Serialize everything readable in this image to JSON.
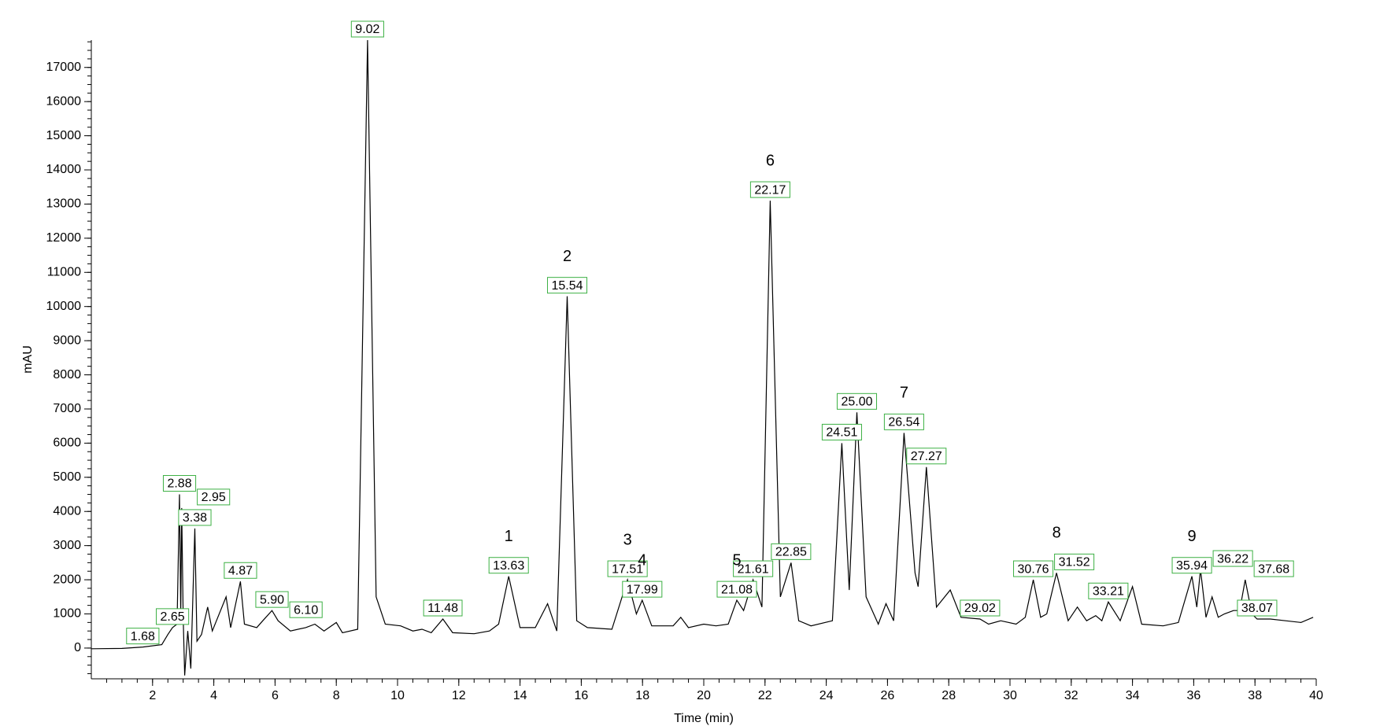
{
  "chart_data": {
    "type": "line",
    "xlabel": "Time (min)",
    "ylabel": "mAU",
    "color": "#000000",
    "xlim": [
      0,
      40
    ],
    "ylim": [
      -900,
      17800
    ],
    "xticks": [
      2,
      4,
      6,
      8,
      10,
      12,
      14,
      16,
      18,
      20,
      22,
      24,
      26,
      28,
      30,
      32,
      34,
      36,
      38,
      40
    ],
    "yticks": [
      0,
      1000,
      2000,
      3000,
      4000,
      5000,
      6000,
      7000,
      8000,
      9000,
      10000,
      11000,
      12000,
      13000,
      14000,
      15000,
      16000,
      17000
    ],
    "xminor": 0.5,
    "yminor": 250,
    "x": [
      0,
      1,
      1.68,
      2.3,
      2.5,
      2.65,
      2.8,
      2.88,
      2.92,
      2.95,
      3.0,
      3.05,
      3.15,
      3.25,
      3.38,
      3.45,
      3.6,
      3.8,
      3.95,
      4.4,
      4.55,
      4.87,
      5.0,
      5.4,
      5.6,
      5.9,
      6.1,
      6.5,
      7.0,
      7.3,
      7.6,
      8.0,
      8.2,
      8.7,
      9.02,
      9.3,
      9.6,
      10.1,
      10.5,
      10.8,
      11.1,
      11.48,
      11.8,
      12.5,
      13.0,
      13.3,
      13.63,
      14.0,
      14.5,
      14.9,
      15.2,
      15.54,
      15.85,
      16.2,
      17.0,
      17.51,
      17.8,
      17.99,
      18.3,
      19.0,
      19.25,
      19.5,
      20.0,
      20.4,
      20.8,
      21.08,
      21.3,
      21.61,
      21.9,
      22.17,
      22.5,
      22.85,
      23.1,
      23.5,
      24.2,
      24.51,
      24.75,
      25.0,
      25.3,
      25.6,
      25.7,
      25.95,
      26.2,
      26.54,
      26.9,
      27.0,
      27.27,
      27.6,
      28.05,
      28.4,
      29.02,
      29.3,
      29.7,
      30.2,
      30.5,
      30.76,
      31.0,
      31.2,
      31.52,
      31.9,
      32.2,
      32.5,
      32.8,
      33.0,
      33.21,
      33.6,
      34.0,
      34.3,
      35.0,
      35.5,
      35.94,
      36.1,
      36.22,
      36.4,
      36.6,
      36.8,
      37.0,
      37.3,
      37.5,
      37.68,
      37.9,
      38.07,
      38.5,
      39.0,
      39.5,
      39.9
    ],
    "values": [
      -20,
      -10,
      30,
      100,
      400,
      600,
      700,
      4500,
      1000,
      4100,
      900,
      -800,
      500,
      -600,
      3500,
      200,
      400,
      1200,
      500,
      1500,
      600,
      1950,
      700,
      600,
      800,
      1100,
      800,
      500,
      600,
      700,
      500,
      750,
      450,
      550,
      17800,
      1500,
      700,
      650,
      500,
      550,
      450,
      850,
      450,
      420,
      500,
      700,
      2100,
      600,
      600,
      1300,
      500,
      10300,
      800,
      600,
      550,
      2000,
      1000,
      1400,
      650,
      650,
      900,
      600,
      700,
      650,
      700,
      1400,
      1100,
      2000,
      1200,
      13100,
      1500,
      2500,
      800,
      650,
      800,
      6000,
      1700,
      6900,
      1500,
      900,
      700,
      1300,
      800,
      6300,
      2200,
      1800,
      5300,
      1200,
      1700,
      900,
      850,
      700,
      800,
      700,
      900,
      2000,
      900,
      1000,
      2200,
      800,
      1200,
      800,
      950,
      800,
      1350,
      800,
      1800,
      700,
      650,
      750,
      2100,
      1200,
      2300,
      900,
      1500,
      900,
      1000,
      1100,
      1100,
      2000,
      1000,
      850,
      850,
      800,
      750,
      900
    ],
    "peak_labels": [
      {
        "text": "1.68",
        "x": 1.68,
        "y": 30
      },
      {
        "text": "2.65",
        "x": 2.65,
        "y": 600
      },
      {
        "text": "2.88",
        "x": 2.88,
        "y": 4500
      },
      {
        "text": "2.95",
        "x": 2.95,
        "y": 4100
      },
      {
        "text": "3.38",
        "x": 3.38,
        "y": 3500
      },
      {
        "text": "4.87",
        "x": 4.87,
        "y": 1950
      },
      {
        "text": "5.90",
        "x": 5.9,
        "y": 1100
      },
      {
        "text": "6.10",
        "x": 6.1,
        "y": 800
      },
      {
        "text": "9.02",
        "x": 9.02,
        "y": 17800
      },
      {
        "text": "11.48",
        "x": 11.48,
        "y": 850
      },
      {
        "text": "13.63",
        "x": 13.63,
        "y": 2100
      },
      {
        "text": "15.54",
        "x": 15.54,
        "y": 10300
      },
      {
        "text": "17.51",
        "x": 17.51,
        "y": 2000
      },
      {
        "text": "17.99",
        "x": 17.99,
        "y": 1400
      },
      {
        "text": "21.08",
        "x": 21.08,
        "y": 1400
      },
      {
        "text": "21.61",
        "x": 21.61,
        "y": 2000
      },
      {
        "text": "22.17",
        "x": 22.17,
        "y": 13100
      },
      {
        "text": "22.85",
        "x": 22.85,
        "y": 2500
      },
      {
        "text": "24.51",
        "x": 24.51,
        "y": 6000
      },
      {
        "text": "25.00",
        "x": 25.0,
        "y": 6900
      },
      {
        "text": "26.54",
        "x": 26.54,
        "y": 6300
      },
      {
        "text": "27.27",
        "x": 27.27,
        "y": 5300
      },
      {
        "text": "29.02",
        "x": 29.02,
        "y": 850
      },
      {
        "text": "30.76",
        "x": 30.76,
        "y": 2000
      },
      {
        "text": "31.52",
        "x": 31.52,
        "y": 2200
      },
      {
        "text": "33.21",
        "x": 33.21,
        "y": 1350
      },
      {
        "text": "35.94",
        "x": 35.94,
        "y": 2100
      },
      {
        "text": "36.22",
        "x": 36.22,
        "y": 2300
      },
      {
        "text": "37.68",
        "x": 37.68,
        "y": 2000
      },
      {
        "text": "38.07",
        "x": 38.07,
        "y": 850
      }
    ],
    "peak_numbers": [
      {
        "text": "1",
        "x": 13.63,
        "y": 2100
      },
      {
        "text": "2",
        "x": 15.54,
        "y": 10300
      },
      {
        "text": "3",
        "x": 17.51,
        "y": 2000
      },
      {
        "text": "4",
        "x": 17.99,
        "y": 1400
      },
      {
        "text": "5",
        "x": 21.08,
        "y": 1400
      },
      {
        "text": "6",
        "x": 22.17,
        "y": 13100
      },
      {
        "text": "7",
        "x": 26.54,
        "y": 6300
      },
      {
        "text": "8",
        "x": 31.52,
        "y": 2200
      },
      {
        "text": "9",
        "x": 35.94,
        "y": 2100
      }
    ]
  }
}
